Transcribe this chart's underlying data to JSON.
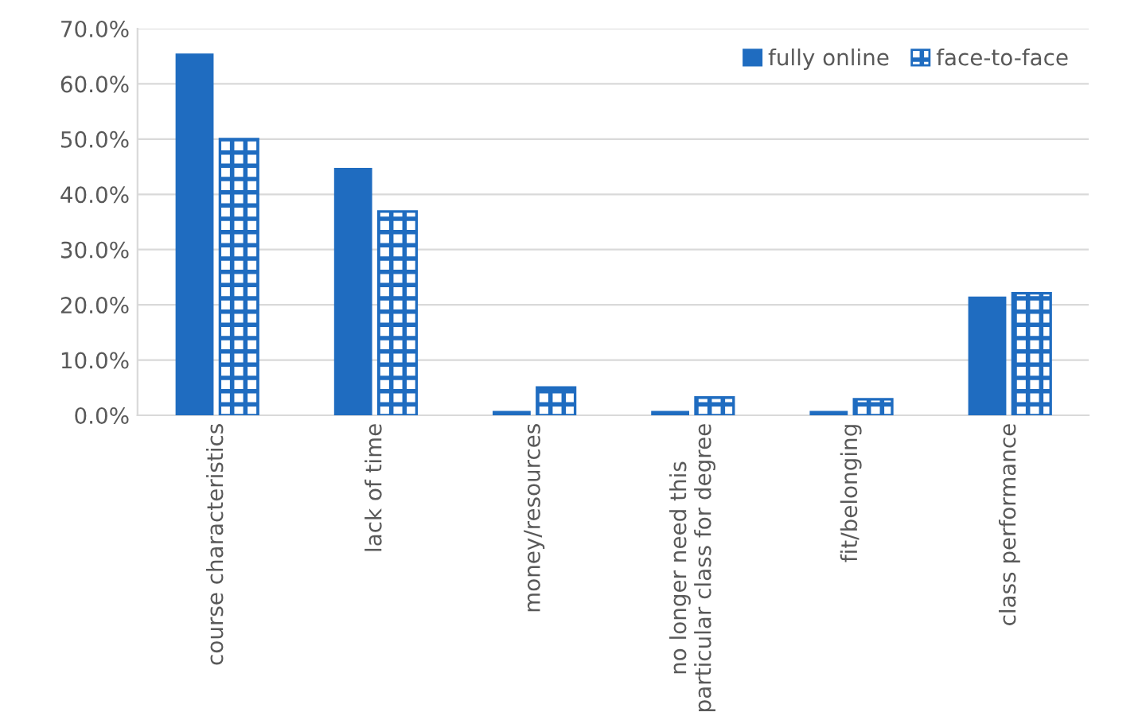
{
  "chart_data": {
    "type": "bar",
    "categories": [
      "course characteristics",
      "lack of time",
      "money/resources",
      "no longer need this\nparticular class for degree",
      "fit/belonging",
      "class performance"
    ],
    "series": [
      {
        "name": "fully online",
        "color": "#1f6cc0",
        "values": [
          65.5,
          44.8,
          0.8,
          0.8,
          0.8,
          21.5
        ]
      },
      {
        "name": "face-to-face",
        "color": "#1f6cc0",
        "values": [
          50.0,
          36.9,
          5.0,
          3.2,
          2.9,
          22.1
        ]
      }
    ],
    "ylim": [
      0,
      70
    ],
    "yticks": [
      {
        "value": 0,
        "label": "0.0%"
      },
      {
        "value": 10,
        "label": "10.0%"
      },
      {
        "value": 20,
        "label": "20.0%"
      },
      {
        "value": 30,
        "label": "30.0%"
      },
      {
        "value": 40,
        "label": "40.0%"
      },
      {
        "value": 50,
        "label": "50.0%"
      },
      {
        "value": 60,
        "label": "60.0%"
      },
      {
        "value": 70,
        "label": "70.0%"
      }
    ],
    "grid": "y",
    "legend": "top right"
  }
}
